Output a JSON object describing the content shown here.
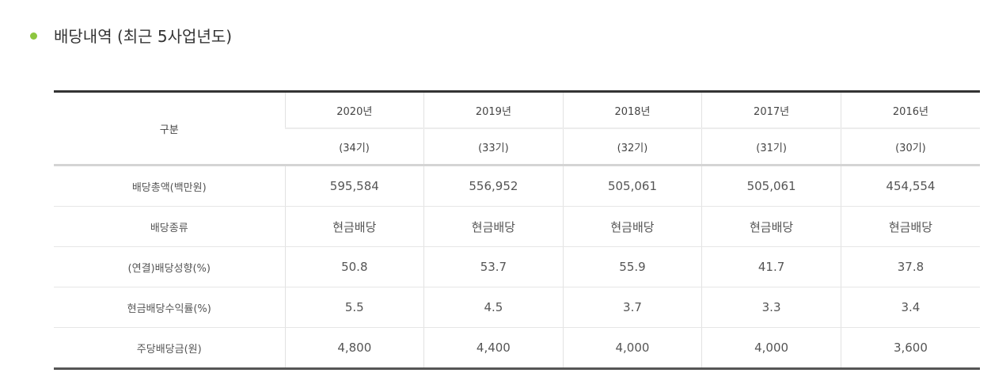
{
  "header": {
    "title": "배당내역 (최근 5사업년도)"
  },
  "table": {
    "corner": "구분",
    "years": [
      "2020년",
      "2019년",
      "2018년",
      "2017년",
      "2016년"
    ],
    "periods": [
      "(34기)",
      "(33기)",
      "(32기)",
      "(31기)",
      "(30기)"
    ],
    "rows": [
      {
        "label": "배당총액(백만원)",
        "cells": [
          "595,584",
          "556,952",
          "505,061",
          "505,061",
          "454,554"
        ]
      },
      {
        "label": "배당종류",
        "cells": [
          "현금배당",
          "현금배당",
          "현금배당",
          "현금배당",
          "현금배당"
        ]
      },
      {
        "label": "(연결)배당성향(%)",
        "cells": [
          "50.8",
          "53.7",
          "55.9",
          "41.7",
          "37.8"
        ]
      },
      {
        "label": "현금배당수익률(%)",
        "cells": [
          "5.5",
          "4.5",
          "3.7",
          "3.3",
          "3.4"
        ]
      },
      {
        "label": "주당배당금(원)",
        "cells": [
          "4,800",
          "4,400",
          "4,000",
          "4,000",
          "3,600"
        ]
      }
    ]
  }
}
